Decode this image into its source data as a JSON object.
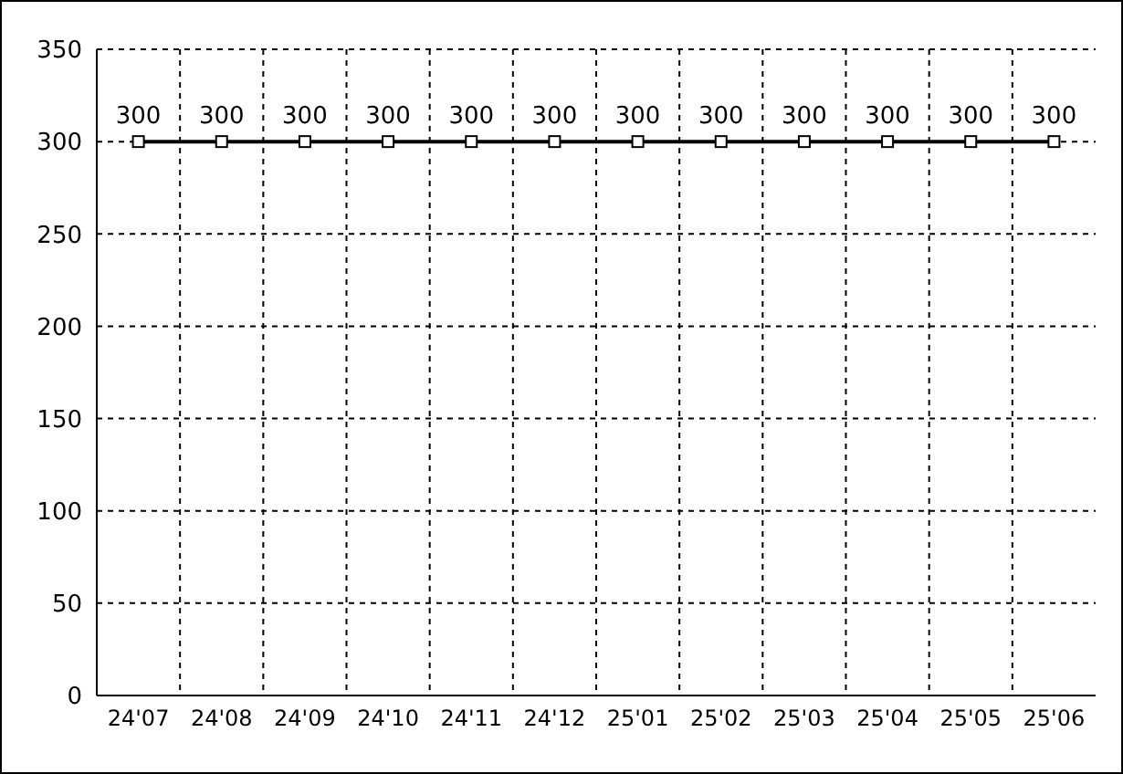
{
  "chart_data": {
    "type": "line",
    "categories": [
      "24'07",
      "24'08",
      "24'09",
      "24'10",
      "24'11",
      "24'12",
      "25'01",
      "25'02",
      "25'03",
      "25'04",
      "25'05",
      "25'06"
    ],
    "series": [
      {
        "color": "#000000",
        "values": [
          300,
          300,
          300,
          300,
          300,
          300,
          300,
          300,
          300,
          300,
          300,
          300
        ]
      }
    ],
    "ylim": [
      0,
      350
    ],
    "yticks": [
      0,
      50,
      100,
      150,
      200,
      250,
      300,
      350
    ],
    "grid": true,
    "marker": "square",
    "line_style": "solid",
    "data_labels": true,
    "legend": false
  }
}
